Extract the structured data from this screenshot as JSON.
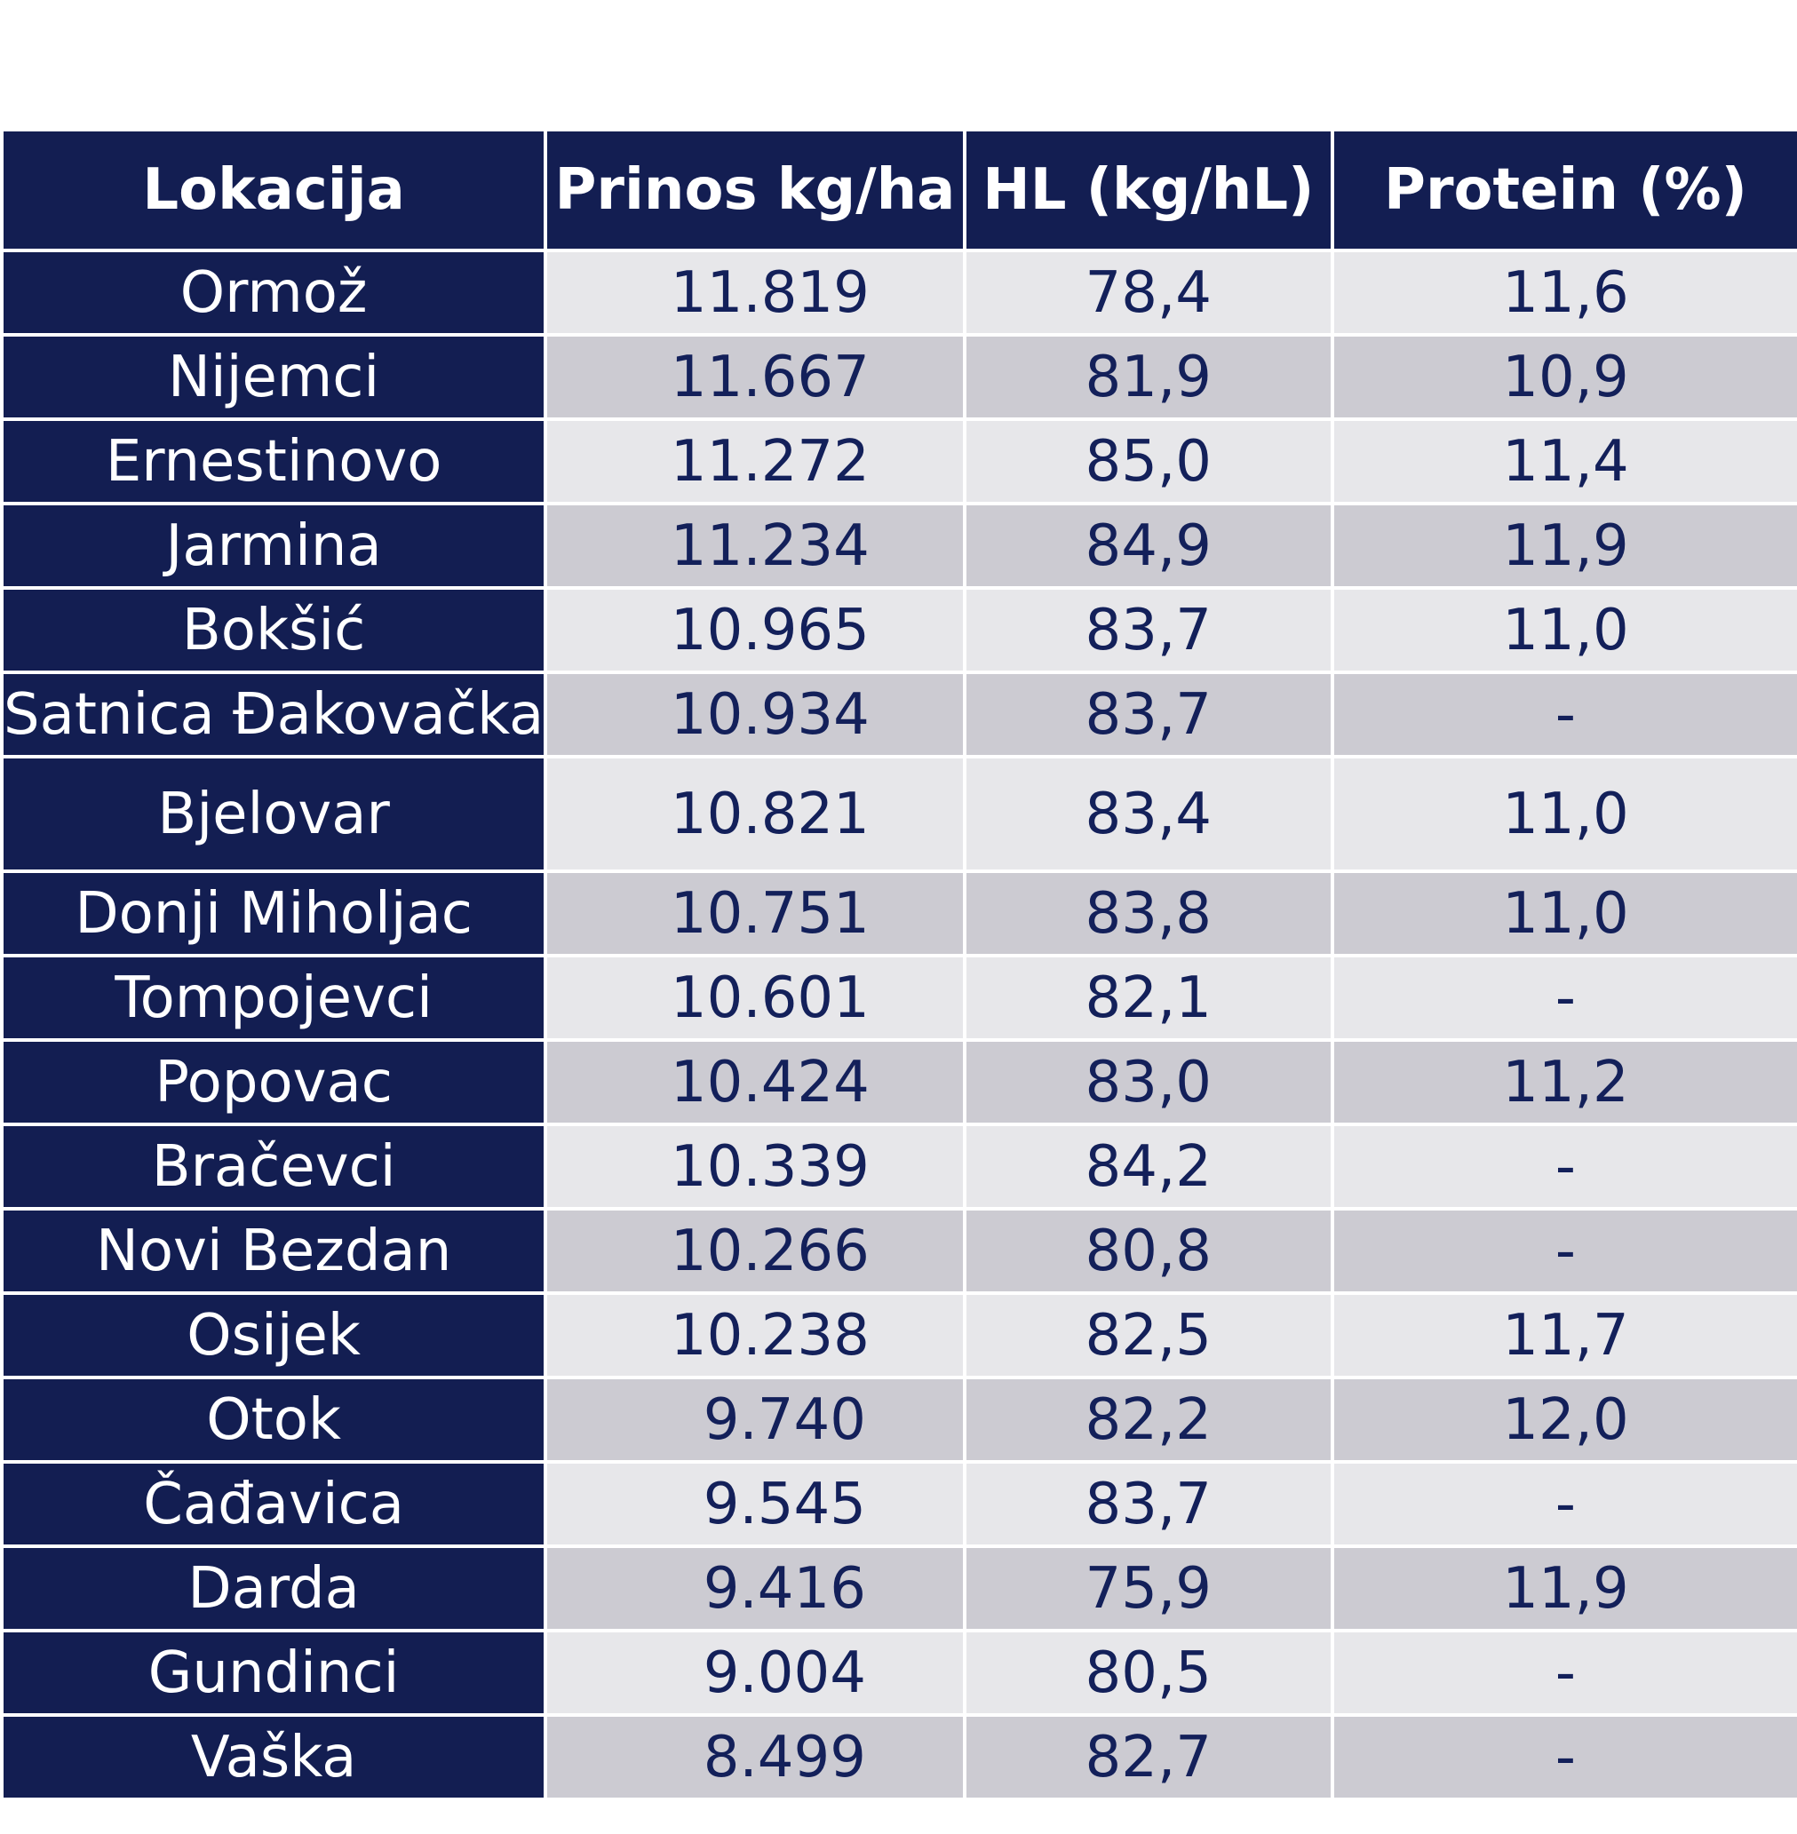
{
  "table": {
    "headers": [
      "Lokacija",
      "Prinos kg/ha",
      "HL (kg/hL)",
      "Protein (%)"
    ],
    "rows": [
      {
        "lokacija": "Ormož",
        "prinos": "11.819",
        "hl": "78,4",
        "protein": "11,6"
      },
      {
        "lokacija": "Nijemci",
        "prinos": "11.667",
        "hl": "81,9",
        "protein": "10,9"
      },
      {
        "lokacija": "Ernestinovo",
        "prinos": "11.272",
        "hl": "85,0",
        "protein": "11,4"
      },
      {
        "lokacija": "Jarmina",
        "prinos": "11.234",
        "hl": "84,9",
        "protein": "11,9"
      },
      {
        "lokacija": "Bokšić",
        "prinos": "10.965",
        "hl": "83,7",
        "protein": "11,0"
      },
      {
        "lokacija": "Satnica Đakovačka",
        "prinos": "10.934",
        "hl": "83,7",
        "protein": "-"
      },
      {
        "lokacija": "Bjelovar",
        "prinos": "10.821",
        "hl": "83,4",
        "protein": "11,0"
      },
      {
        "lokacija": "Donji Miholjac",
        "prinos": "10.751",
        "hl": "83,8",
        "protein": "11,0"
      },
      {
        "lokacija": "Tompojevci",
        "prinos": "10.601",
        "hl": "82,1",
        "protein": "-"
      },
      {
        "lokacija": "Popovac",
        "prinos": "10.424",
        "hl": "83,0",
        "protein": "11,2"
      },
      {
        "lokacija": "Bračevci",
        "prinos": "10.339",
        "hl": "84,2",
        "protein": "-"
      },
      {
        "lokacija": "Novi Bezdan",
        "prinos": "10.266",
        "hl": "80,8",
        "protein": "-"
      },
      {
        "lokacija": "Osijek",
        "prinos": "10.238",
        "hl": "82,5",
        "protein": "11,7"
      },
      {
        "lokacija": "Otok",
        "prinos": "9.740",
        "hl": "82,2",
        "protein": "12,0"
      },
      {
        "lokacija": "Čađavica",
        "prinos": "9.545",
        "hl": "83,7",
        "protein": "-"
      },
      {
        "lokacija": "Darda",
        "prinos": "9.416",
        "hl": "75,9",
        "protein": "11,9"
      },
      {
        "lokacija": "Gundinci",
        "prinos": "9.004",
        "hl": "80,5",
        "protein": "-"
      },
      {
        "lokacija": "Vaška",
        "prinos": "8.499",
        "hl": "82,7",
        "protein": "-"
      }
    ]
  },
  "colors": {
    "header_bg": "#131e52",
    "row_light": "#e7e7ea",
    "row_dark": "#cccbd2",
    "value_text": "#13205a"
  }
}
